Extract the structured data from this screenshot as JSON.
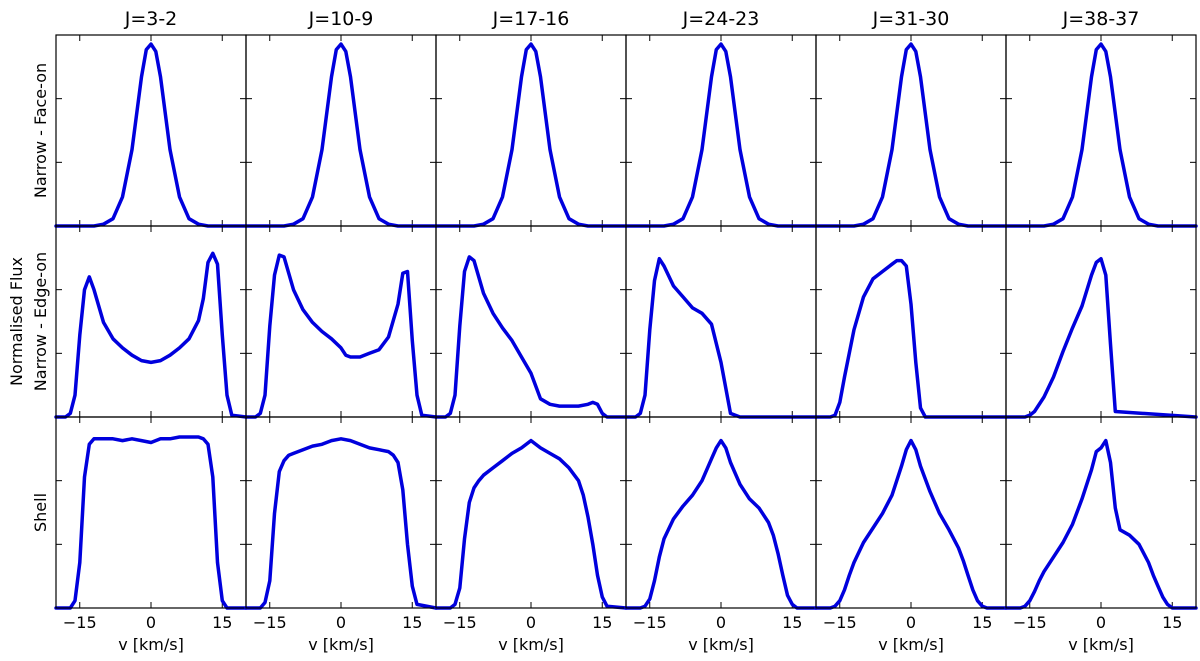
{
  "chart_data": {
    "type": "line",
    "title": "",
    "columns": [
      "J=3-2",
      "J=10-9",
      "J=17-16",
      "J=24-23",
      "J=31-30",
      "J=38-37"
    ],
    "rows": [
      "Narrow - Face-on",
      "Narrow - Edge-on",
      "Shell"
    ],
    "ylabel": "Normalised Flux",
    "xlabel": "v [km/s]",
    "xlim": [
      -20,
      20
    ],
    "ylim": [
      0,
      1.05
    ],
    "xticks": [
      -15,
      0,
      15
    ],
    "xtick_labels": [
      "−15",
      "0",
      "15"
    ],
    "grid": false,
    "line_color": "#0000dd",
    "panels": [
      [
        {
          "x": [
            -20,
            -12,
            -10,
            -8,
            -6,
            -4,
            -2,
            -1,
            0,
            1,
            2,
            4,
            6,
            8,
            10,
            12,
            20
          ],
          "y": [
            0,
            0,
            0.01,
            0.04,
            0.16,
            0.42,
            0.82,
            0.97,
            1.0,
            0.96,
            0.82,
            0.42,
            0.16,
            0.04,
            0.01,
            0,
            0
          ]
        },
        {
          "x": [
            -20,
            -12,
            -10,
            -8,
            -6,
            -4,
            -2,
            -1,
            0,
            1,
            2,
            4,
            6,
            8,
            10,
            12,
            20
          ],
          "y": [
            0,
            0,
            0.01,
            0.04,
            0.16,
            0.42,
            0.82,
            0.97,
            1.0,
            0.96,
            0.82,
            0.42,
            0.16,
            0.04,
            0.01,
            0,
            0
          ]
        },
        {
          "x": [
            -20,
            -12,
            -10,
            -8,
            -6,
            -4,
            -2,
            -1,
            0,
            1,
            2,
            4,
            6,
            8,
            10,
            12,
            20
          ],
          "y": [
            0,
            0,
            0.01,
            0.04,
            0.16,
            0.42,
            0.82,
            0.97,
            1.0,
            0.96,
            0.82,
            0.42,
            0.16,
            0.04,
            0.01,
            0,
            0
          ]
        },
        {
          "x": [
            -20,
            -12,
            -10,
            -8,
            -6,
            -4,
            -2,
            -1,
            0,
            1,
            2,
            4,
            6,
            8,
            10,
            12,
            20
          ],
          "y": [
            0,
            0,
            0.01,
            0.04,
            0.16,
            0.42,
            0.82,
            0.97,
            1.0,
            0.96,
            0.82,
            0.42,
            0.16,
            0.04,
            0.01,
            0,
            0
          ]
        },
        {
          "x": [
            -20,
            -12,
            -10,
            -8,
            -6,
            -4,
            -2,
            -1,
            0,
            1,
            2,
            4,
            6,
            8,
            10,
            12,
            20
          ],
          "y": [
            0,
            0,
            0.01,
            0.04,
            0.16,
            0.42,
            0.82,
            0.97,
            1.0,
            0.96,
            0.82,
            0.42,
            0.16,
            0.04,
            0.01,
            0,
            0
          ]
        },
        {
          "x": [
            -20,
            -12,
            -10,
            -8,
            -6,
            -4,
            -2,
            -1,
            0,
            1,
            2,
            4,
            6,
            8,
            10,
            12,
            20
          ],
          "y": [
            0,
            0,
            0.01,
            0.04,
            0.16,
            0.42,
            0.82,
            0.97,
            1.0,
            0.96,
            0.82,
            0.42,
            0.16,
            0.04,
            0.01,
            0,
            0
          ]
        }
      ],
      [
        {
          "x": [
            -20,
            -18,
            -17,
            -16,
            -15,
            -14,
            -13,
            -12,
            -10,
            -8,
            -6,
            -4,
            -2,
            0,
            2,
            4,
            6,
            8,
            10,
            11,
            12,
            13,
            14,
            15,
            16,
            17,
            20
          ],
          "y": [
            0,
            0,
            0.02,
            0.12,
            0.45,
            0.7,
            0.77,
            0.7,
            0.52,
            0.43,
            0.38,
            0.34,
            0.31,
            0.3,
            0.31,
            0.34,
            0.38,
            0.43,
            0.53,
            0.65,
            0.85,
            0.9,
            0.84,
            0.45,
            0.12,
            0.01,
            0
          ]
        },
        {
          "x": [
            -20,
            -18,
            -17,
            -16,
            -15,
            -14,
            -13,
            -12,
            -10,
            -8,
            -6,
            -4,
            -2,
            0,
            1,
            2,
            4,
            6,
            8,
            10,
            12,
            13,
            14,
            15,
            16,
            17,
            20
          ],
          "y": [
            0,
            0,
            0.02,
            0.12,
            0.5,
            0.78,
            0.89,
            0.88,
            0.7,
            0.59,
            0.52,
            0.47,
            0.43,
            0.38,
            0.34,
            0.33,
            0.33,
            0.35,
            0.37,
            0.44,
            0.62,
            0.79,
            0.8,
            0.42,
            0.12,
            0.01,
            0
          ]
        },
        {
          "x": [
            -20,
            -18,
            -17,
            -16,
            -15,
            -14,
            -13,
            -12,
            -10,
            -8,
            -6,
            -4,
            -2,
            0,
            2,
            4,
            6,
            8,
            10,
            12,
            13,
            14,
            15,
            16,
            20
          ],
          "y": [
            0,
            0,
            0.02,
            0.12,
            0.5,
            0.8,
            0.88,
            0.86,
            0.68,
            0.57,
            0.49,
            0.42,
            0.33,
            0.24,
            0.1,
            0.07,
            0.06,
            0.06,
            0.06,
            0.07,
            0.08,
            0.07,
            0.02,
            0,
            0
          ]
        },
        {
          "x": [
            -20,
            -18,
            -17,
            -16,
            -15,
            -14,
            -13,
            -12,
            -10,
            -8,
            -6,
            -4,
            -2,
            0,
            2,
            4,
            20
          ],
          "y": [
            0,
            0,
            0.02,
            0.12,
            0.48,
            0.75,
            0.87,
            0.83,
            0.72,
            0.66,
            0.6,
            0.57,
            0.51,
            0.3,
            0.02,
            0,
            0
          ]
        },
        {
          "x": [
            -20,
            -17,
            -16,
            -15,
            -14,
            -12,
            -10,
            -8,
            -6,
            -4,
            -3,
            -2,
            -1,
            0,
            1,
            2,
            3,
            20
          ],
          "y": [
            0,
            0,
            0.01,
            0.08,
            0.22,
            0.48,
            0.66,
            0.76,
            0.8,
            0.84,
            0.86,
            0.86,
            0.83,
            0.62,
            0.3,
            0.05,
            0,
            0
          ]
        },
        {
          "x": [
            -20,
            -16,
            -15,
            -14,
            -12,
            -10,
            -8,
            -6,
            -4,
            -2,
            -1,
            0,
            1,
            2,
            3,
            20
          ],
          "y": [
            0,
            0,
            0.01,
            0.03,
            0.11,
            0.22,
            0.36,
            0.49,
            0.61,
            0.78,
            0.85,
            0.87,
            0.78,
            0.4,
            0.03,
            0
          ]
        }
      ],
      [
        {
          "x": [
            -20,
            -17,
            -16,
            -15,
            -14,
            -13,
            -12,
            -10,
            -8,
            -6,
            -4,
            -2,
            0,
            2,
            4,
            6,
            8,
            10,
            11,
            12,
            13,
            14,
            15,
            16,
            20
          ],
          "y": [
            0,
            0,
            0.04,
            0.25,
            0.72,
            0.9,
            0.93,
            0.93,
            0.93,
            0.92,
            0.93,
            0.92,
            0.91,
            0.93,
            0.93,
            0.94,
            0.94,
            0.94,
            0.93,
            0.9,
            0.72,
            0.25,
            0.04,
            0,
            0
          ]
        },
        {
          "x": [
            -20,
            -17,
            -16,
            -15,
            -14,
            -13,
            -12,
            -11,
            -10,
            -8,
            -6,
            -4,
            -2,
            0,
            2,
            4,
            6,
            8,
            10,
            11,
            12,
            13,
            14,
            15,
            16,
            20
          ],
          "y": [
            0,
            0,
            0.03,
            0.15,
            0.52,
            0.75,
            0.81,
            0.84,
            0.85,
            0.87,
            0.89,
            0.9,
            0.92,
            0.93,
            0.92,
            0.9,
            0.88,
            0.87,
            0.86,
            0.84,
            0.8,
            0.65,
            0.35,
            0.12,
            0.02,
            0
          ]
        },
        {
          "x": [
            -20,
            -17,
            -16,
            -15,
            -14,
            -13,
            -12,
            -11,
            -10,
            -8,
            -6,
            -4,
            -2,
            0,
            2,
            4,
            6,
            8,
            10,
            11,
            12,
            13,
            14,
            15,
            16,
            20
          ],
          "y": [
            0,
            0,
            0.02,
            0.11,
            0.38,
            0.58,
            0.66,
            0.7,
            0.73,
            0.77,
            0.81,
            0.85,
            0.88,
            0.92,
            0.88,
            0.85,
            0.82,
            0.77,
            0.7,
            0.62,
            0.5,
            0.35,
            0.18,
            0.06,
            0.01,
            0
          ]
        },
        {
          "x": [
            -20,
            -17,
            -16,
            -15,
            -14,
            -13,
            -12,
            -10,
            -8,
            -6,
            -4,
            -2,
            -1,
            0,
            1,
            2,
            4,
            6,
            8,
            10,
            11,
            12,
            13,
            14,
            15,
            16,
            20
          ],
          "y": [
            0,
            0,
            0.01,
            0.05,
            0.15,
            0.28,
            0.38,
            0.49,
            0.56,
            0.62,
            0.7,
            0.82,
            0.88,
            0.92,
            0.88,
            0.8,
            0.68,
            0.6,
            0.55,
            0.47,
            0.4,
            0.3,
            0.18,
            0.07,
            0.02,
            0,
            0
          ]
        },
        {
          "x": [
            -20,
            -17,
            -16,
            -15,
            -14,
            -13,
            -12,
            -10,
            -8,
            -6,
            -4,
            -2,
            -1,
            0,
            1,
            2,
            4,
            6,
            8,
            10,
            11,
            12,
            13,
            14,
            15,
            16,
            20
          ],
          "y": [
            0,
            0,
            0.01,
            0.04,
            0.1,
            0.18,
            0.25,
            0.36,
            0.44,
            0.52,
            0.62,
            0.78,
            0.87,
            0.92,
            0.87,
            0.78,
            0.64,
            0.52,
            0.43,
            0.33,
            0.26,
            0.18,
            0.1,
            0.04,
            0.01,
            0,
            0
          ]
        },
        {
          "x": [
            -20,
            -17,
            -16,
            -15,
            -14,
            -13,
            -12,
            -10,
            -8,
            -6,
            -4,
            -2,
            -1,
            0,
            1,
            2,
            3,
            4,
            6,
            8,
            10,
            11,
            12,
            13,
            14,
            15,
            20
          ],
          "y": [
            0,
            0,
            0.01,
            0.04,
            0.09,
            0.15,
            0.2,
            0.28,
            0.36,
            0.46,
            0.6,
            0.76,
            0.86,
            0.88,
            0.92,
            0.8,
            0.55,
            0.43,
            0.4,
            0.35,
            0.25,
            0.18,
            0.12,
            0.06,
            0.02,
            0,
            0
          ]
        }
      ]
    ]
  }
}
